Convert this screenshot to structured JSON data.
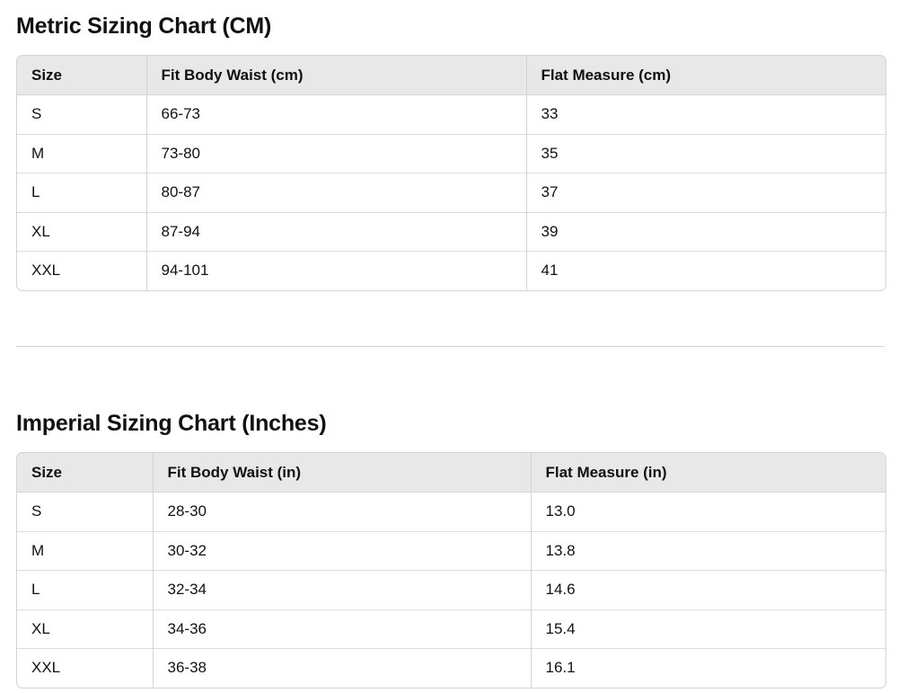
{
  "metric": {
    "title": "Metric Sizing Chart (CM)",
    "headers": [
      "Size",
      "Fit Body Waist (cm)",
      "Flat Measure (cm)"
    ],
    "rows": [
      [
        "S",
        "66-73",
        "33"
      ],
      [
        "M",
        "73-80",
        "35"
      ],
      [
        "L",
        "80-87",
        "37"
      ],
      [
        "XL",
        "87-94",
        "39"
      ],
      [
        "XXL",
        "94-101",
        "41"
      ]
    ]
  },
  "imperial": {
    "title": "Imperial Sizing Chart (Inches)",
    "headers": [
      "Size",
      "Fit Body Waist (in)",
      "Flat Measure (in)"
    ],
    "rows": [
      [
        "S",
        "28-30",
        "13.0"
      ],
      [
        "M",
        "30-32",
        "13.8"
      ],
      [
        "L",
        "32-34",
        "14.6"
      ],
      [
        "XL",
        "34-36",
        "15.4"
      ],
      [
        "XXL",
        "36-38",
        "16.1"
      ]
    ]
  }
}
